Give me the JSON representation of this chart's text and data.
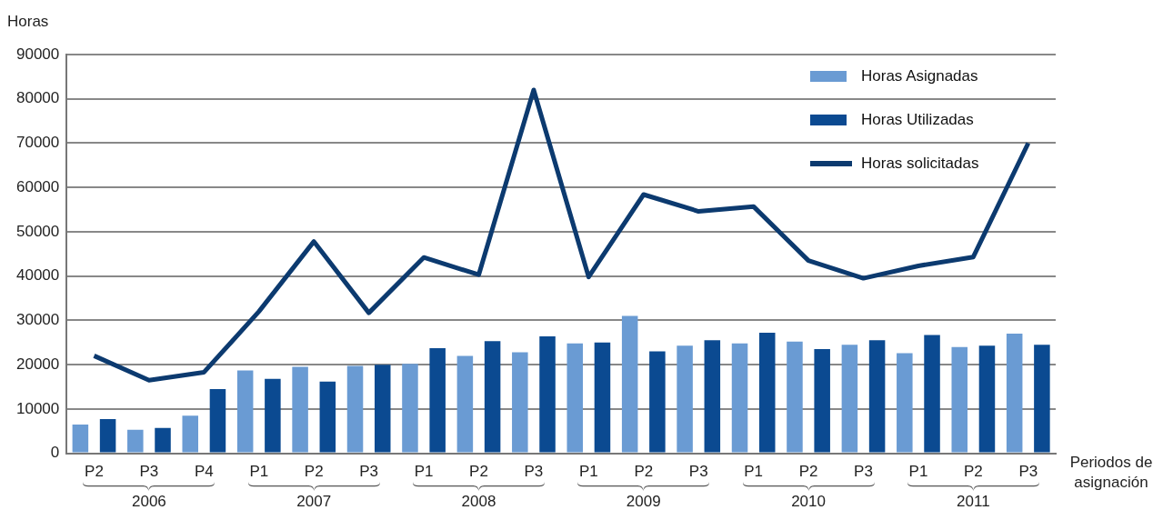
{
  "chart_data": {
    "type": "bar",
    "ylabel": "Horas",
    "xlabel": "Periodos de asignación",
    "categories": [
      "P2",
      "P3",
      "P4",
      "P1",
      "P2",
      "P3",
      "P1",
      "P2",
      "P3",
      "P1",
      "P2",
      "P3",
      "P1",
      "P2",
      "P3",
      "P1",
      "P2",
      "P3"
    ],
    "series": [
      {
        "name": "Horas Asignadas",
        "color": "#6a9bd3",
        "values": [
          6500,
          5300,
          8500,
          18700,
          19500,
          19700,
          20200,
          22000,
          22800,
          24800,
          31000,
          24300,
          24800,
          25200,
          24500,
          22600,
          24000,
          27000
        ]
      },
      {
        "name": "Horas Utilizadas",
        "color": "#0b4a91",
        "values": [
          7700,
          5700,
          14500,
          16800,
          16200,
          20000,
          23700,
          25300,
          26400,
          25000,
          23000,
          25500,
          27200,
          23500,
          25500,
          26700,
          24300,
          24500
        ]
      },
      {
        "name": "Horas solicitadas",
        "type": "line",
        "color": "#0c3a6f",
        "values": [
          22000,
          16500,
          18300,
          32000,
          47800,
          31700,
          44200,
          40300,
          82000,
          39800,
          58400,
          54600,
          55700,
          43500,
          39500,
          42300,
          44300,
          70000
        ]
      }
    ],
    "annotations": [
      "2006",
      "2007",
      "2008",
      "2009",
      "2010",
      "2011"
    ],
    "ylim": [
      0,
      90000
    ],
    "yticks": [
      0,
      10000,
      20000,
      30000,
      40000,
      50000,
      60000,
      70000,
      80000,
      90000
    ],
    "grid": "y",
    "legend": "top right",
    "marker": "none"
  }
}
